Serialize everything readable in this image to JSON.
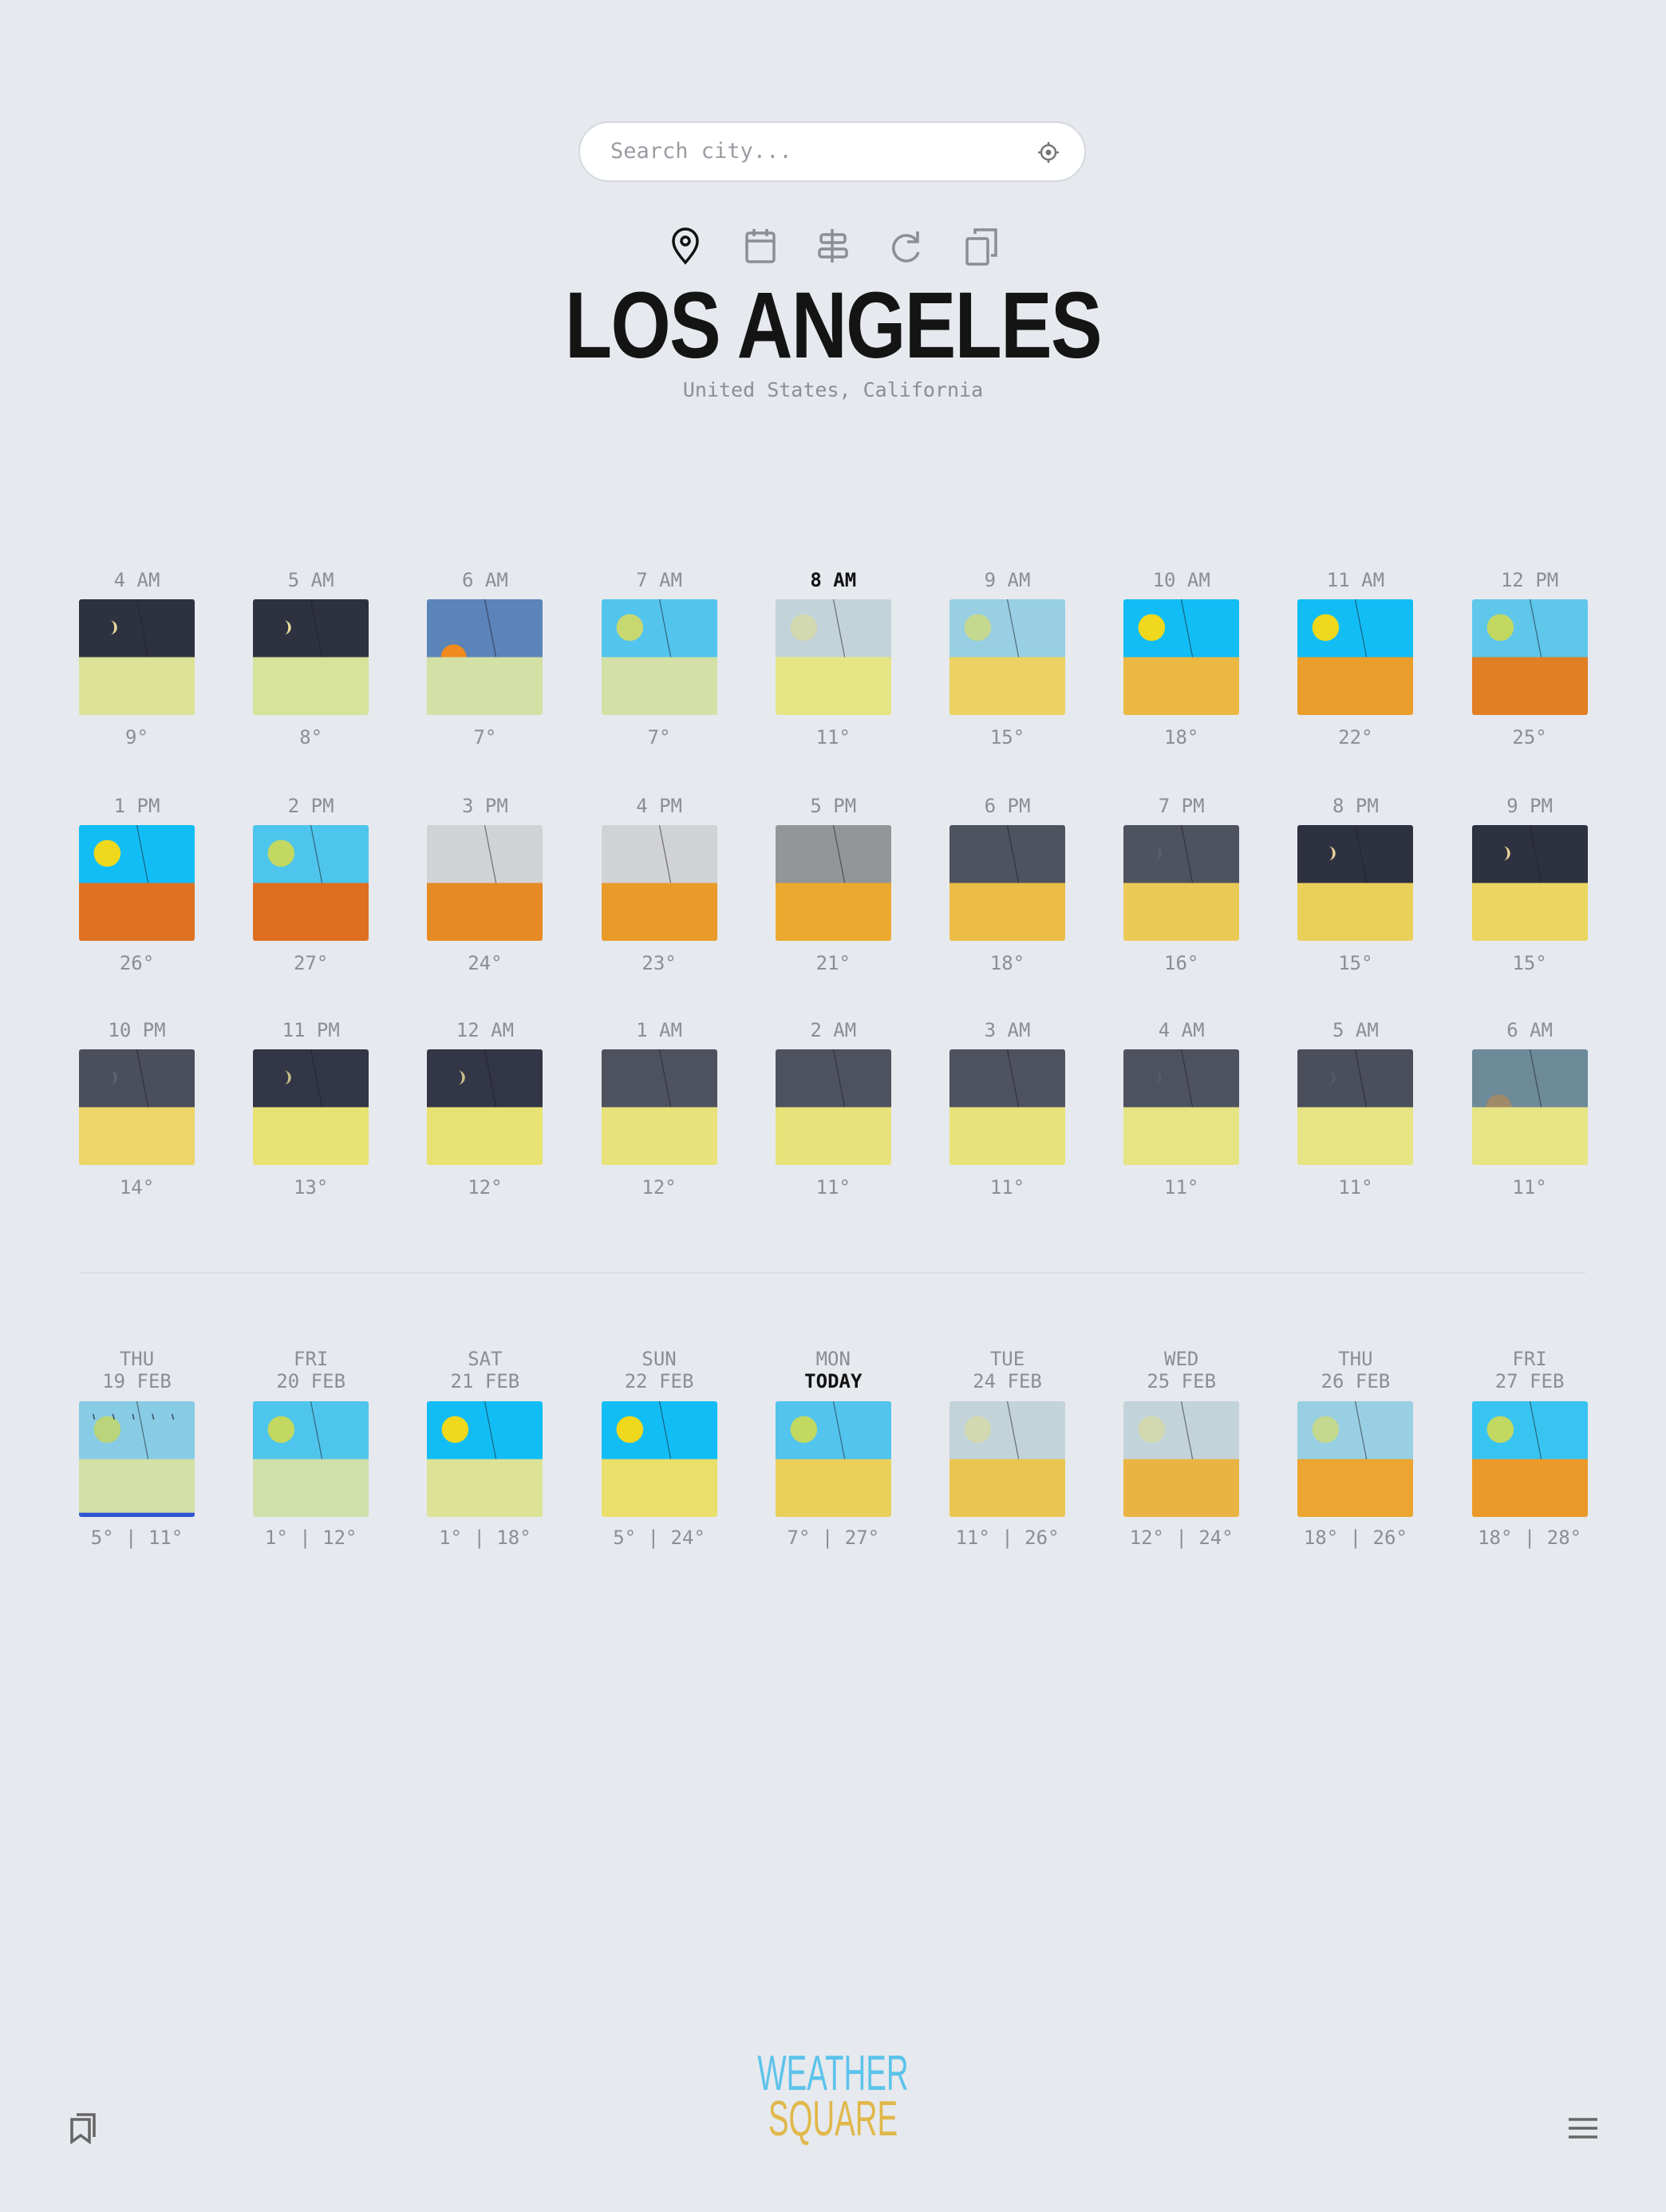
{
  "search": {
    "placeholder": "Search city..."
  },
  "location": {
    "title": "LOS ANGELES",
    "subtitle": "United States, California"
  },
  "hourly": [
    {
      "time": "4 AM",
      "temp": "9°",
      "sky": "#2e3140",
      "ground": "#dde396",
      "orb": "#e8dc9a",
      "orb_type": "moon"
    },
    {
      "time": "5 AM",
      "temp": "8°",
      "sky": "#2e3140",
      "ground": "#d7e29c",
      "orb": "#e8dc9a",
      "orb_type": "moon"
    },
    {
      "time": "6 AM",
      "temp": "7°",
      "sky": "#5b84b8",
      "ground": "#d3e0a6",
      "orb": "#f08a1c",
      "orb_type": "low"
    },
    {
      "time": "7 AM",
      "temp": "7°",
      "sky": "#52c4ee",
      "ground": "#d3e0a6",
      "orb": "#c8d870",
      "orb_type": "sun"
    },
    {
      "time": "8 AM",
      "temp": "11°",
      "sky": "#c3d3da",
      "ground": "#e6e585",
      "orb": "#d2d8b0",
      "orb_type": "sun"
    },
    {
      "time": "9 AM",
      "temp": "15°",
      "sky": "#98cfe2",
      "ground": "#ebd262",
      "orb": "#c5d88f",
      "orb_type": "sun"
    },
    {
      "time": "10 AM",
      "temp": "18°",
      "sky": "#12bdf5",
      "ground": "#ebb843",
      "orb": "#f0d81c",
      "orb_type": "sun"
    },
    {
      "time": "11 AM",
      "temp": "22°",
      "sky": "#12bdf5",
      "ground": "#ea9e2c",
      "orb": "#f0d81c",
      "orb_type": "sun"
    },
    {
      "time": "12 PM",
      "temp": "25°",
      "sky": "#5ec7ea",
      "ground": "#e07f24",
      "orb": "#c2d860",
      "orb_type": "sun"
    },
    {
      "time": "1 PM",
      "temp": "26°",
      "sky": "#12bdf5",
      "ground": "#de7222",
      "orb": "#f0d81c",
      "orb_type": "sun"
    },
    {
      "time": "2 PM",
      "temp": "27°",
      "sky": "#4ec5ec",
      "ground": "#de6f21",
      "orb": "#c2d860",
      "orb_type": "sun"
    },
    {
      "time": "3 PM",
      "temp": "24°",
      "sky": "#d1d2d3",
      "ground": "#e68a25",
      "orb": null,
      "orb_type": null
    },
    {
      "time": "4 PM",
      "temp": "23°",
      "sky": "#d1d2d3",
      "ground": "#e99b2a",
      "orb": null,
      "orb_type": null
    },
    {
      "time": "5 PM",
      "temp": "21°",
      "sky": "#939598",
      "ground": "#eca92f",
      "orb": null,
      "orb_type": null
    },
    {
      "time": "6 PM",
      "temp": "18°",
      "sky": "#4e535f",
      "ground": "#ebbc46",
      "orb": null,
      "orb_type": null
    },
    {
      "time": "7 PM",
      "temp": "16°",
      "sky": "#4e535f",
      "ground": "#ebc957",
      "orb": "#5a5f6a",
      "orb_type": "moon"
    },
    {
      "time": "8 PM",
      "temp": "15°",
      "sky": "#2e3140",
      "ground": "#ebcf5b",
      "orb": "#e8d39a",
      "orb_type": "moon"
    },
    {
      "time": "9 PM",
      "temp": "15°",
      "sky": "#2e3140",
      "ground": "#ead660",
      "orb": "#e8d39a",
      "orb_type": "moon"
    },
    {
      "time": "10 PM",
      "temp": "14°",
      "sky": "#4b4f5b",
      "ground": "#ecd66a",
      "orb": "#5e6370",
      "orb_type": "moon"
    },
    {
      "time": "11 PM",
      "temp": "13°",
      "sky": "#333646",
      "ground": "#e8e272",
      "orb": "#c9bf8a",
      "orb_type": "moon"
    },
    {
      "time": "12 AM",
      "temp": "12°",
      "sky": "#333646",
      "ground": "#e8e272",
      "orb": "#ccc08a",
      "orb_type": "moon"
    },
    {
      "time": "1 AM",
      "temp": "12°",
      "sky": "#4e525e",
      "ground": "#e8e27a",
      "orb": null,
      "orb_type": null
    },
    {
      "time": "2 AM",
      "temp": "11°",
      "sky": "#4e525e",
      "ground": "#e8e27a",
      "orb": null,
      "orb_type": null
    },
    {
      "time": "3 AM",
      "temp": "11°",
      "sky": "#4e525e",
      "ground": "#e8e27a",
      "orb": null,
      "orb_type": null
    },
    {
      "time": "4 AM",
      "temp": "11°",
      "sky": "#4e525e",
      "ground": "#e6e484",
      "orb": "#565b66",
      "orb_type": "moon"
    },
    {
      "time": "5 AM",
      "temp": "11°",
      "sky": "#4b4f5b",
      "ground": "#e6e484",
      "orb": "#565b66",
      "orb_type": "moon"
    },
    {
      "time": "6 AM",
      "temp": "11°",
      "sky": "#6d8a99",
      "ground": "#e6e484",
      "orb": "#a18a6a",
      "orb_type": "low"
    }
  ],
  "daily": [
    {
      "day": "THU",
      "date": "19 FEB",
      "temp": "5° | 11°",
      "sky": "#87cce4",
      "ground": "#d3e0a6",
      "orb": "#b9d47a",
      "orb_type": "rain"
    },
    {
      "day": "FRI",
      "date": "20 FEB",
      "temp": "1° | 12°",
      "sky": "#4ec5ec",
      "ground": "#cfe0ab",
      "orb": "#c2d860",
      "orb_type": "sun"
    },
    {
      "day": "SAT",
      "date": "21 FEB",
      "temp": "1° | 18°",
      "sky": "#12bdf5",
      "ground": "#dde396",
      "orb": "#f0d81c",
      "orb_type": "sun"
    },
    {
      "day": "SUN",
      "date": "22 FEB",
      "temp": "5° | 24°",
      "sky": "#12bdf5",
      "ground": "#e9df6a",
      "orb": "#f0d81c",
      "orb_type": "sun"
    },
    {
      "day": "MON",
      "date": "TODAY",
      "temp": "7° | 27°",
      "sky": "#52c4ee",
      "ground": "#ebcf5b",
      "orb": "#c2d860",
      "orb_type": "sun"
    },
    {
      "day": "TUE",
      "date": "24 FEB",
      "temp": "11° | 26°",
      "sky": "#c3d3da",
      "ground": "#ebc552",
      "orb": "#d2d8b0",
      "orb_type": "sun"
    },
    {
      "day": "WED",
      "date": "25 FEB",
      "temp": "12° | 24°",
      "sky": "#c3d3da",
      "ground": "#eab443",
      "orb": "#d2d8b0",
      "orb_type": "sun"
    },
    {
      "day": "THU",
      "date": "26 FEB",
      "temp": "18° | 26°",
      "sky": "#98cfe2",
      "ground": "#eba530",
      "orb": "#c5d88f",
      "orb_type": "sun"
    },
    {
      "day": "FRI",
      "date": "27 FEB",
      "temp": "18° | 28°",
      "sky": "#38c4f0",
      "ground": "#ea9a28",
      "orb": "#c2d860",
      "orb_type": "sun"
    }
  ],
  "logo": {
    "line1": "WEATHER",
    "line2": "SQUARE"
  }
}
